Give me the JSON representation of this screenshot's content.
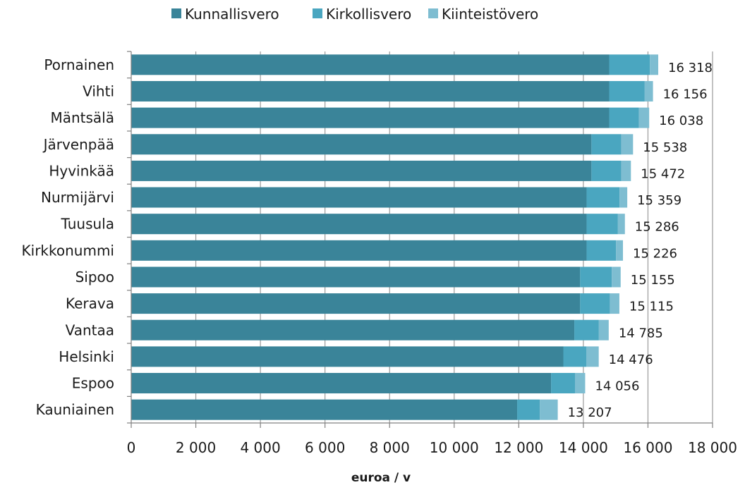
{
  "chart_data": {
    "type": "bar",
    "orientation": "horizontal",
    "stacked": true,
    "categories": [
      "Pornainen",
      "Vihti",
      "Mäntsälä",
      "Järvenpää",
      "Hyvinkää",
      "Nurmijärvi",
      "Tuusula",
      "Kirkkonummi",
      "Sipoo",
      "Kerava",
      "Vantaa",
      "Helsinki",
      "Espoo",
      "Kauniainen"
    ],
    "series": [
      {
        "name": "Kunnallisvero",
        "color": "#3a8499",
        "values": [
          14800,
          14800,
          14800,
          14250,
          14250,
          14100,
          14100,
          14100,
          13900,
          13900,
          13720,
          13380,
          13000,
          11950
        ]
      },
      {
        "name": "Kirkollisvero",
        "color": "#4aa6c0",
        "values": [
          1260,
          1100,
          920,
          920,
          920,
          1020,
          970,
          910,
          980,
          920,
          760,
          710,
          740,
          700
        ]
      },
      {
        "name": "Kiinteistövero",
        "color": "#7ebdd1",
        "values": [
          258,
          256,
          318,
          368,
          302,
          239,
          216,
          216,
          275,
          295,
          305,
          386,
          316,
          557
        ]
      }
    ],
    "totals": [
      "16 318",
      "16 156",
      "16 038",
      "15 538",
      "15 472",
      "15 359",
      "15 286",
      "15 226",
      "15 155",
      "15 115",
      "14 785",
      "14 476",
      "14 056",
      "13 207"
    ],
    "xlim": [
      0,
      18000
    ],
    "xticks": [
      0,
      2000,
      4000,
      6000,
      8000,
      10000,
      12000,
      14000,
      16000,
      18000
    ],
    "xtick_labels": [
      "0",
      "2 000",
      "4 000",
      "6 000",
      "8 000",
      "10 000",
      "12 000",
      "14 000",
      "16 000",
      "18 000"
    ],
    "xlabel": "euroa / v",
    "legend_position": "top-center",
    "grid": "vertical"
  }
}
